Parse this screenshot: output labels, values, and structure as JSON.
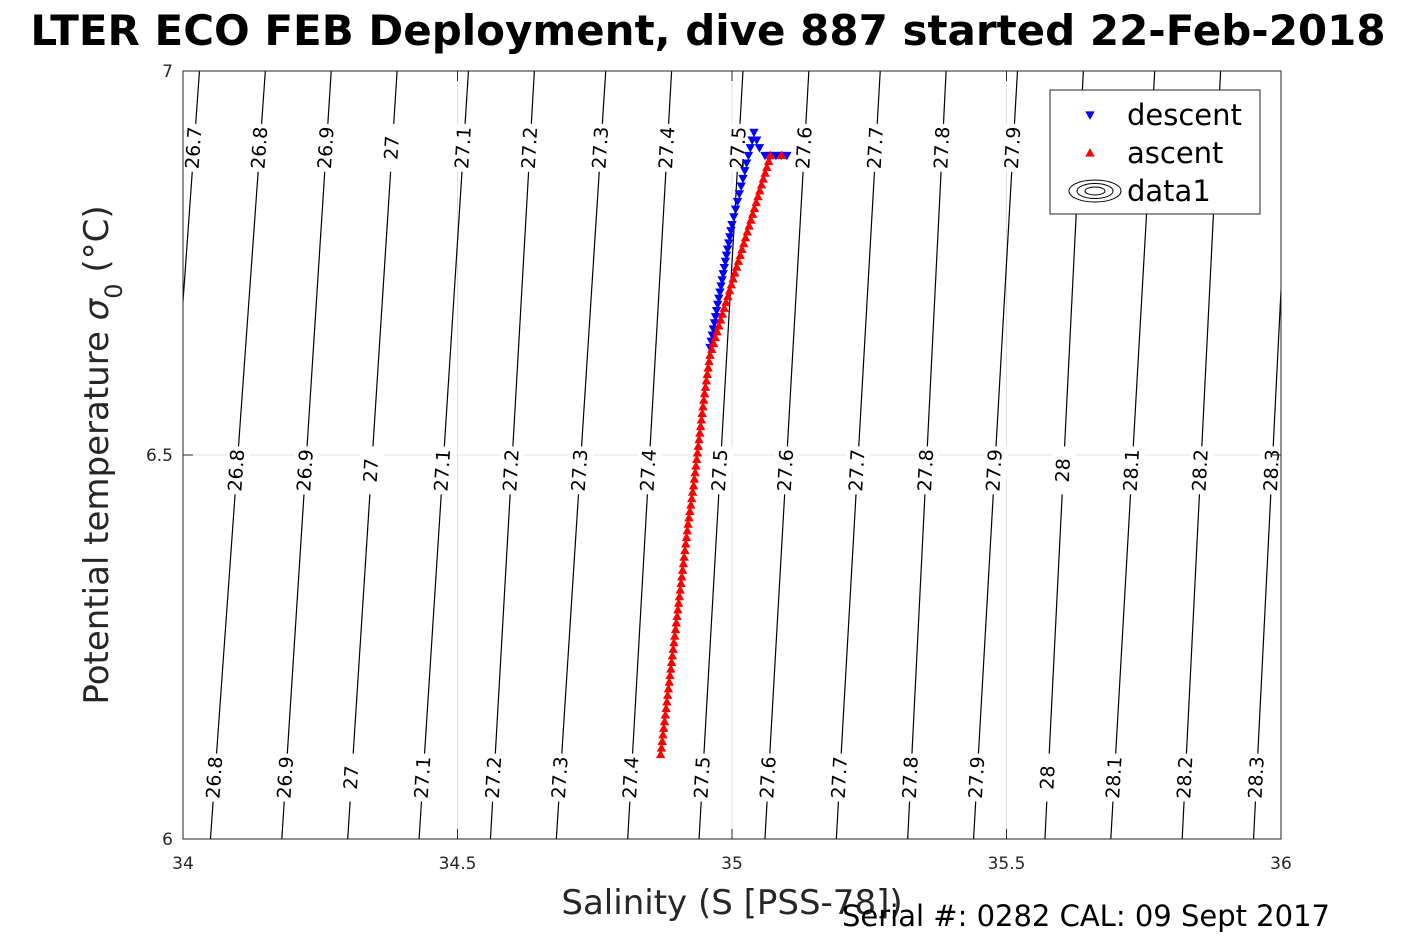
{
  "title": "LTER ECO FEB Deployment, dive 887 started 22-Feb-2018",
  "footer": "Serial #: 0282  CAL: 09 Sept 2017",
  "chart_data": {
    "type": "scatter",
    "xlabel": "Salinity (S [PSS-78])",
    "ylabel_main": "Potential temperature ",
    "ylabel_sigma": "σ",
    "ylabel_sub": "0",
    "ylabel_unit": " (°C)",
    "xlim": [
      34,
      36
    ],
    "ylim": [
      6,
      7
    ],
    "xticks": [
      "34",
      "34.5",
      "35",
      "35.5",
      "36"
    ],
    "yticks": [
      "6",
      "6.5",
      "7"
    ],
    "grid": true,
    "legend_position": "top-right",
    "legend": [
      {
        "label": "descent",
        "marker": "triangle-down",
        "color": "#0000ff"
      },
      {
        "label": "ascent",
        "marker": "triangle-up",
        "color": "#ff0000"
      },
      {
        "label": "data1",
        "marker": "contour",
        "color": "#000000"
      }
    ],
    "series": [
      {
        "name": "descent",
        "color": "#0000ff",
        "marker": "triangle-down",
        "x": [
          34.96,
          34.97,
          34.98,
          34.99,
          35.0,
          35.01,
          35.02,
          35.03,
          35.04,
          35.05,
          35.06,
          35.07,
          35.08,
          35.09,
          35.1
        ],
        "y": [
          6.64,
          6.68,
          6.72,
          6.76,
          6.8,
          6.83,
          6.86,
          6.89,
          6.92,
          6.9,
          6.89,
          6.89,
          6.89,
          6.89,
          6.89
        ]
      },
      {
        "name": "ascent",
        "color": "#ff0000",
        "marker": "triangle-up",
        "x": [
          34.87,
          34.88,
          34.89,
          34.9,
          34.91,
          34.92,
          34.93,
          34.94,
          34.95,
          34.96,
          35.07,
          35.09
        ],
        "y": [
          6.11,
          6.17,
          6.23,
          6.29,
          6.35,
          6.41,
          6.46,
          6.52,
          6.58,
          6.63,
          6.89,
          6.89
        ]
      }
    ],
    "isopycnals": {
      "labels": [
        "26.7",
        "26.8",
        "26.9",
        "27",
        "27.1",
        "27.2",
        "27.3",
        "27.4",
        "27.5",
        "27.6",
        "27.7",
        "27.8",
        "27.9",
        "28",
        "28.1",
        "28.2",
        "28.3"
      ],
      "x_at_7": [
        34.03,
        34.15,
        34.27,
        34.39,
        34.52,
        34.64,
        34.77,
        34.89,
        35.02,
        35.14,
        35.27,
        35.39,
        35.52,
        35.64,
        35.77,
        35.89,
        36.02
      ],
      "x_at_6": [
        33.93,
        34.05,
        34.18,
        34.3,
        34.43,
        34.56,
        34.68,
        34.81,
        34.94,
        35.06,
        35.19,
        35.32,
        35.44,
        35.57,
        35.69,
        35.82,
        35.95
      ],
      "label_rows_y": [
        6.9,
        6.48,
        6.08
      ]
    }
  }
}
